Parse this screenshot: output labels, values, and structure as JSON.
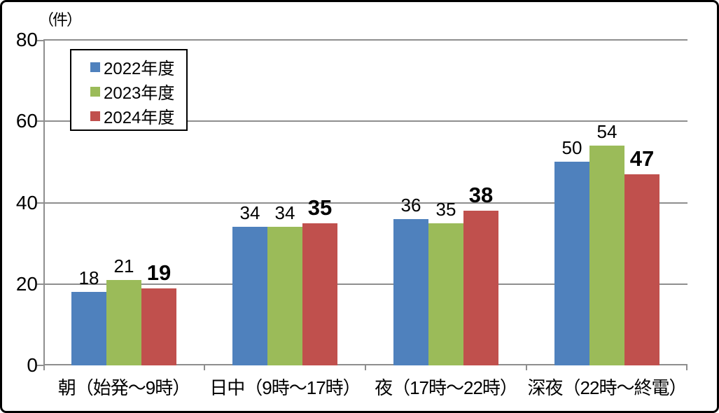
{
  "chart_data": {
    "type": "bar",
    "title": "",
    "unit_label": "（件）",
    "categories": [
      "朝（始発～9時）",
      "日中（9時～17時）",
      "夜（17時～22時）",
      "深夜（22時～終電）"
    ],
    "series": [
      {
        "name": "2022年度",
        "color": "#4F81BD",
        "values": [
          18,
          34,
          36,
          50
        ],
        "bold_value_labels": false
      },
      {
        "name": "2023年度",
        "color": "#9BBB59",
        "values": [
          21,
          34,
          35,
          54
        ],
        "bold_value_labels": false
      },
      {
        "name": "2024年度",
        "color": "#C0504D",
        "values": [
          19,
          35,
          38,
          47
        ],
        "bold_value_labels": true
      }
    ],
    "y_ticks": [
      0,
      20,
      40,
      60,
      80
    ],
    "ylim": [
      0,
      80
    ],
    "grid": true,
    "legend_position": "upper-left-inside",
    "colors": {
      "grid": "#8E8E8E",
      "axis": "#8E8E8E",
      "text": "#000000",
      "background": "#FFFFFF",
      "frame_border": "#000000"
    }
  }
}
